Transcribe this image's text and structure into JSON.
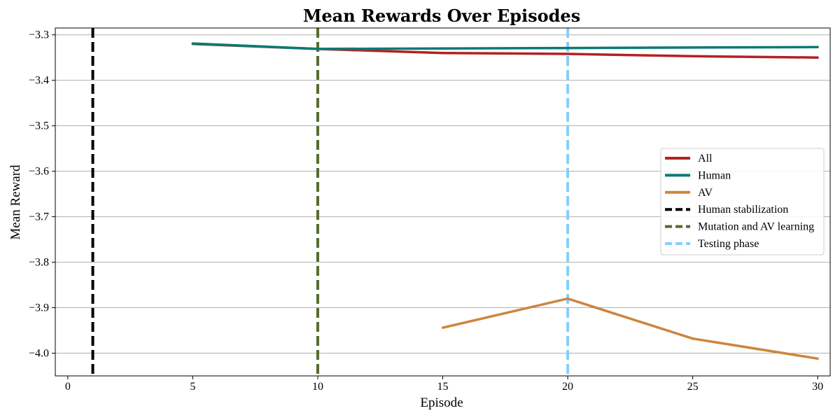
{
  "chart_data": {
    "type": "line",
    "title": "Mean Rewards Over Episodes",
    "xlabel": "Episode",
    "ylabel": "Mean Reward",
    "xlim": [
      -0.5,
      30.5
    ],
    "ylim": [
      -4.05,
      -3.285
    ],
    "xticks": [
      0,
      5,
      10,
      15,
      20,
      25,
      30
    ],
    "yticks": [
      -3.3,
      -3.4,
      -3.5,
      -3.6,
      -3.7,
      -3.8,
      -3.9,
      -4.0
    ],
    "xtick_labels": [
      "0",
      "5",
      "10",
      "15",
      "20",
      "25",
      "30"
    ],
    "ytick_labels": [
      "−3.3",
      "−3.4",
      "−3.5",
      "−3.6",
      "−3.7",
      "−3.8",
      "−3.9",
      "−4.0"
    ],
    "grid": "horizontal",
    "legend_position": "center-right",
    "series": [
      {
        "name": "All",
        "color": "#b22222",
        "x": [
          5,
          10,
          15,
          20,
          25,
          30
        ],
        "y": [
          -3.32,
          -3.331,
          -3.34,
          -3.342,
          -3.347,
          -3.35
        ]
      },
      {
        "name": "Human",
        "color": "#0b7a75",
        "x": [
          5,
          10,
          15,
          20,
          25,
          30
        ],
        "y": [
          -3.319,
          -3.331,
          -3.33,
          -3.329,
          -3.328,
          -3.327
        ]
      },
      {
        "name": "AV",
        "color": "#cd853f",
        "x": [
          15,
          20,
          25,
          30
        ],
        "y": [
          -3.944,
          -3.88,
          -3.968,
          -4.012
        ]
      }
    ],
    "vlines": [
      {
        "name": "Human stabilization",
        "x": 1,
        "color": "#000000"
      },
      {
        "name": "Mutation and AV learning",
        "x": 10,
        "color": "#556b2f"
      },
      {
        "name": "Testing phase",
        "x": 20,
        "color": "#87cefa"
      }
    ]
  }
}
